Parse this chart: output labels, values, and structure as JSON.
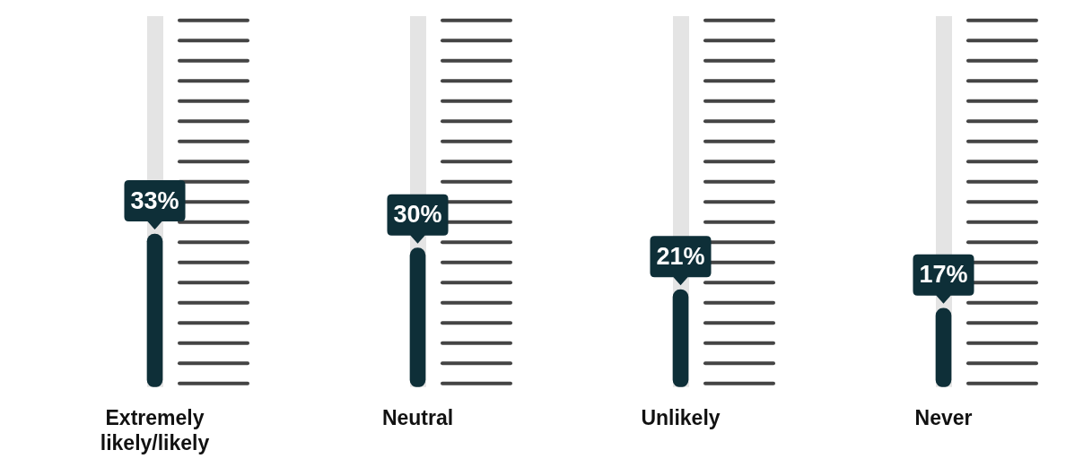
{
  "chart_data": {
    "type": "bar",
    "categories": [
      "Extremely likely/likely",
      "Neutral",
      "Unlikely",
      "Never"
    ],
    "values": [
      33,
      30,
      21,
      17
    ],
    "value_labels": [
      "33%",
      "30%",
      "21%",
      "17%"
    ],
    "color": "#0e2f38",
    "grid": "x"
  }
}
